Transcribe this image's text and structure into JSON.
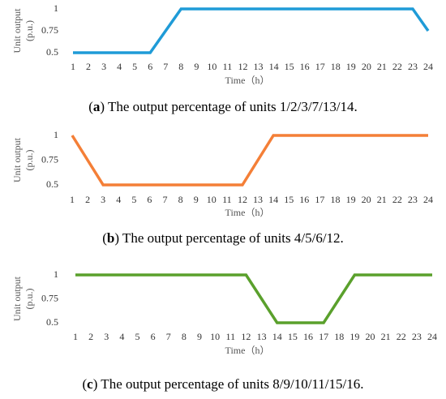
{
  "chart_data": [
    {
      "type": "line",
      "y_label": [
        "Unit output",
        "(p.u.)"
      ],
      "x_label": "Time（h）",
      "caption": [
        "(",
        "a",
        ") The output percentage of units 1/2/3/7/13/14."
      ],
      "categories": [
        "1",
        "2",
        "3",
        "4",
        "5",
        "6",
        "7",
        "8",
        "9",
        "10",
        "11",
        "12",
        "13",
        "14",
        "15",
        "16",
        "17",
        "18",
        "19",
        "20",
        "21",
        "22",
        "23",
        "24"
      ],
      "values": [
        0.5,
        0.5,
        0.5,
        0.5,
        0.5,
        0.5,
        0.75,
        1,
        1,
        1,
        1,
        1,
        1,
        1,
        1,
        1,
        1,
        1,
        1,
        1,
        1,
        1,
        1,
        0.75
      ],
      "color": "#1f9bd7",
      "ylim": [
        0.5,
        1
      ],
      "yticks": [
        0.5,
        0.75,
        1
      ],
      "grid": false
    },
    {
      "type": "line",
      "y_label": [
        "Unit output",
        "(p.u.)"
      ],
      "x_label": "Time（h）",
      "caption": [
        "(",
        "b",
        ") The output percentage of units 4/5/6/12."
      ],
      "categories": [
        "1",
        "2",
        "3",
        "4",
        "5",
        "6",
        "7",
        "8",
        "9",
        "10",
        "11",
        "12",
        "13",
        "14",
        "15",
        "16",
        "17",
        "18",
        "19",
        "20",
        "21",
        "22",
        "23",
        "24"
      ],
      "values": [
        1,
        0.75,
        0.5,
        0.5,
        0.5,
        0.5,
        0.5,
        0.5,
        0.5,
        0.5,
        0.5,
        0.5,
        0.75,
        1,
        1,
        1,
        1,
        1,
        1,
        1,
        1,
        1,
        1,
        1
      ],
      "color": "#f47f37",
      "ylim": [
        0.5,
        1
      ],
      "yticks": [
        0.5,
        0.75,
        1
      ],
      "grid": false
    },
    {
      "type": "line",
      "y_label": [
        "Unit output",
        "(p.u.)"
      ],
      "x_label": "Time（h）",
      "caption": [
        "(",
        "c",
        ") The output percentage of units 8/9/10/11/15/16."
      ],
      "categories": [
        "1",
        "2",
        "3",
        "4",
        "5",
        "6",
        "7",
        "8",
        "9",
        "10",
        "11",
        "12",
        "13",
        "14",
        "15",
        "16",
        "17",
        "18",
        "19",
        "20",
        "21",
        "22",
        "23",
        "24"
      ],
      "values": [
        1,
        1,
        1,
        1,
        1,
        1,
        1,
        1,
        1,
        1,
        1,
        1,
        0.75,
        0.5,
        0.5,
        0.5,
        0.5,
        0.75,
        1,
        1,
        1,
        1,
        1,
        1
      ],
      "color": "#5aa02c",
      "ylim": [
        0.5,
        1
      ],
      "yticks": [
        0.5,
        0.75,
        1
      ],
      "grid": false
    }
  ]
}
